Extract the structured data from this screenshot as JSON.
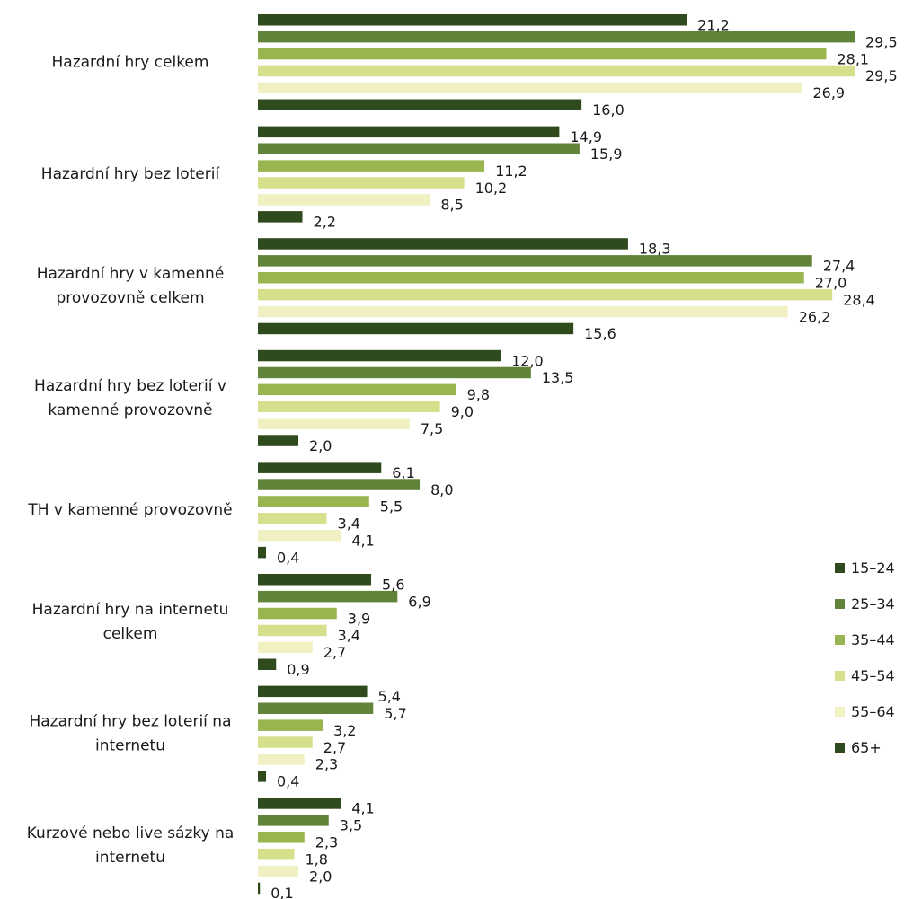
{
  "chart_data": {
    "type": "bar",
    "orientation": "horizontal",
    "categories": [
      [
        "Hazardní hry celkem"
      ],
      [
        "Hazardní hry bez loterií"
      ],
      [
        "Hazardní hry v kamenné",
        "provozovně celkem"
      ],
      [
        "Hazardní hry bez loterií v",
        "kamenné provozovně"
      ],
      [
        "TH v kamenné provozovně"
      ],
      [
        "Hazardní hry na internetu",
        "celkem"
      ],
      [
        "Hazardní hry bez loterií na",
        "internetu"
      ],
      [
        "Kurzové nebo live sázky na",
        "internetu"
      ]
    ],
    "series": [
      {
        "name": "15–24",
        "color": "#2f4a1d",
        "values": [
          21.2,
          14.9,
          18.3,
          12.0,
          6.1,
          5.6,
          5.4,
          4.1
        ]
      },
      {
        "name": "25–34",
        "color": "#62833a",
        "values": [
          29.5,
          15.9,
          27.4,
          13.5,
          8.0,
          6.9,
          5.7,
          3.5
        ]
      },
      {
        "name": "35–44",
        "color": "#98b54f",
        "values": [
          28.1,
          11.2,
          27.0,
          9.8,
          5.5,
          3.9,
          3.2,
          2.3
        ]
      },
      {
        "name": "45–54",
        "color": "#d6df8b",
        "values": [
          29.5,
          10.2,
          28.4,
          9.0,
          3.4,
          3.4,
          2.7,
          1.8
        ]
      },
      {
        "name": "55–64",
        "color": "#f1f0c2",
        "values": [
          26.9,
          8.5,
          26.2,
          7.5,
          4.1,
          2.7,
          2.3,
          2.0
        ]
      },
      {
        "name": "65+",
        "color": "#2f4a1d",
        "values": [
          16.0,
          2.2,
          15.6,
          2.0,
          0.4,
          0.9,
          0.4,
          0.1
        ]
      }
    ],
    "value_labels": [
      [
        "21,2",
        "29,5",
        "28,1",
        "29,5",
        "26,9",
        "16,0"
      ],
      [
        "14,9",
        "15,9",
        "11,2",
        "10,2",
        "8,5",
        "2,2"
      ],
      [
        "18,3",
        "27,4",
        "27,0",
        "28,4",
        "26,2",
        "15,6"
      ],
      [
        "12,0",
        "13,5",
        "9,8",
        "9,0",
        "7,5",
        "2,0"
      ],
      [
        "6,1",
        "8,0",
        "5,5",
        "3,4",
        "4,1",
        "0,4"
      ],
      [
        "5,6",
        "6,9",
        "3,9",
        "3,4",
        "2,7",
        "0,9"
      ],
      [
        "5,4",
        "5,7",
        "3,2",
        "2,7",
        "2,3",
        "0,4"
      ],
      [
        "4,1",
        "3,5",
        "2,3",
        "1,8",
        "2,0",
        "0,1"
      ]
    ],
    "xlim": [
      0,
      29.5
    ],
    "grid": false,
    "legend_position": "right"
  }
}
